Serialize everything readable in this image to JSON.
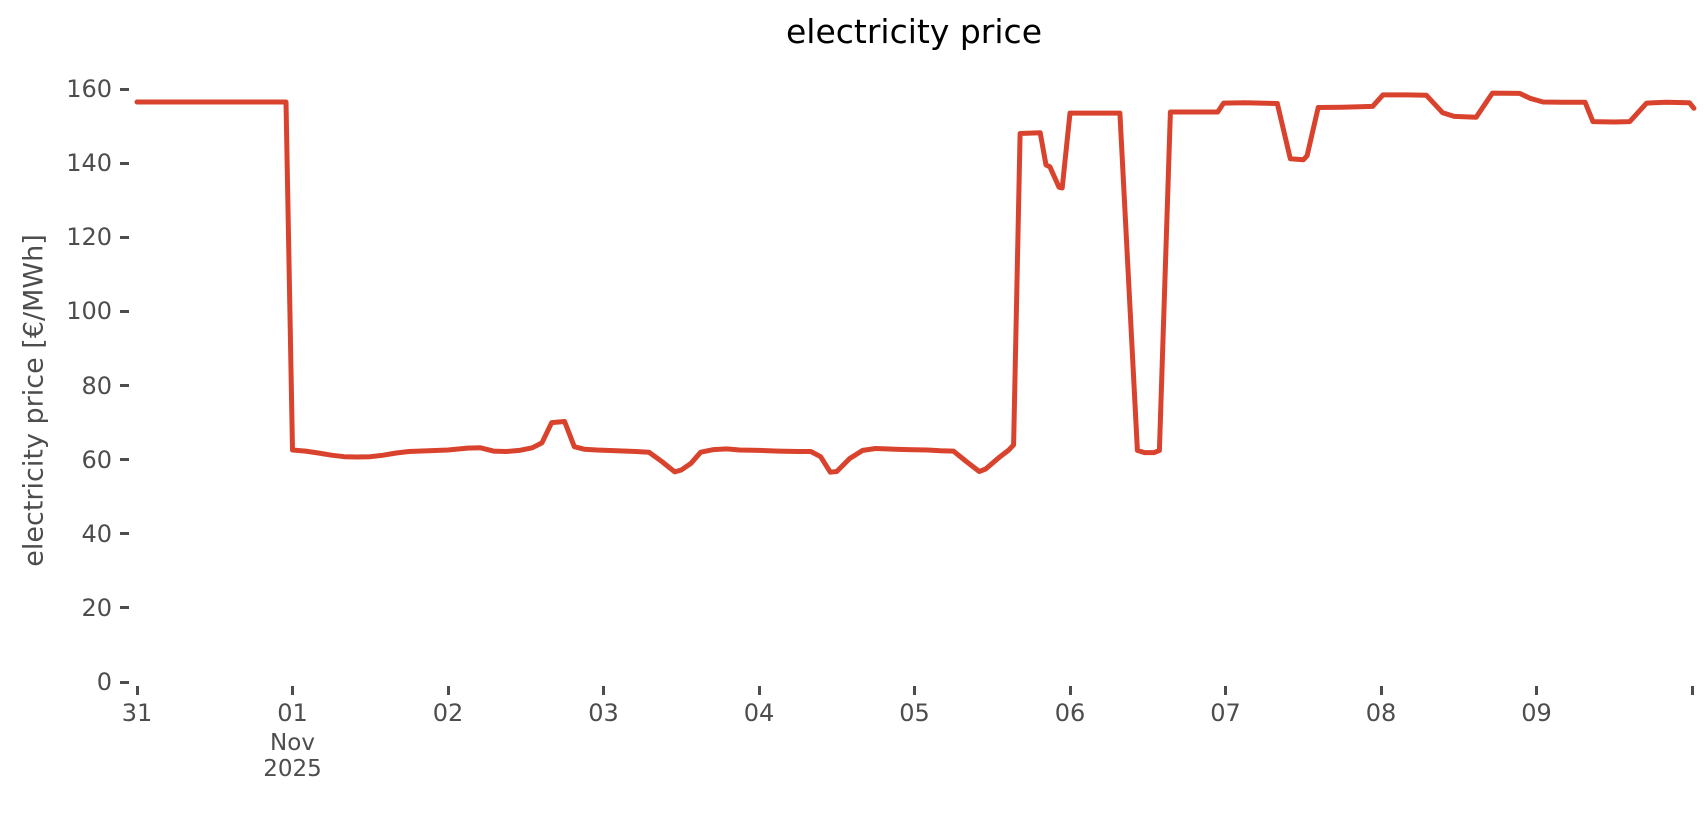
{
  "chart_data": {
    "type": "line",
    "title": "electricity price",
    "xlabel": "",
    "ylabel": "electricity price [€/MWh]",
    "x_unit": "hours since 2025-10-31 00:00",
    "xlim": [
      0,
      241
    ],
    "ylim": [
      0,
      164
    ],
    "grid": false,
    "legend": "none",
    "colors": {
      "line": "#d9432e",
      "tick_text": "#4d4d4d",
      "title_text": "#000000",
      "background": "#ffffff"
    },
    "y_ticks": [
      0,
      20,
      40,
      60,
      80,
      100,
      120,
      140,
      160
    ],
    "x_ticks": [
      {
        "hour": 0,
        "label": "31"
      },
      {
        "hour": 24,
        "label": "01",
        "sub1": "Nov",
        "sub2": "2025"
      },
      {
        "hour": 48,
        "label": "02"
      },
      {
        "hour": 72,
        "label": "03"
      },
      {
        "hour": 96,
        "label": "04"
      },
      {
        "hour": 120,
        "label": "05"
      },
      {
        "hour": 144,
        "label": "06"
      },
      {
        "hour": 168,
        "label": "07"
      },
      {
        "hour": 192,
        "label": "08"
      },
      {
        "hour": 216,
        "label": "09"
      },
      {
        "hour": 240,
        "label": ""
      }
    ],
    "series": [
      {
        "name": "electricity price",
        "points": [
          [
            0,
            156.5
          ],
          [
            4,
            156.5
          ],
          [
            8,
            156.5
          ],
          [
            12,
            156.5
          ],
          [
            16,
            156.5
          ],
          [
            20,
            156.5
          ],
          [
            23,
            156.5
          ],
          [
            24,
            62.6
          ],
          [
            26,
            62.3
          ],
          [
            28,
            61.8
          ],
          [
            30,
            61.2
          ],
          [
            32,
            60.8
          ],
          [
            34,
            60.7
          ],
          [
            36,
            60.8
          ],
          [
            38,
            61.2
          ],
          [
            40,
            61.8
          ],
          [
            42,
            62.2
          ],
          [
            45,
            62.4
          ],
          [
            48,
            62.6
          ],
          [
            51,
            63.1
          ],
          [
            53,
            63.2
          ],
          [
            55,
            62.3
          ],
          [
            57,
            62.2
          ],
          [
            59,
            62.5
          ],
          [
            61,
            63.2
          ],
          [
            62.5,
            64.5
          ],
          [
            64,
            70
          ],
          [
            66,
            70.3
          ],
          [
            67.5,
            63.5
          ],
          [
            69,
            62.8
          ],
          [
            71,
            62.6
          ],
          [
            74,
            62.4
          ],
          [
            77,
            62.2
          ],
          [
            79,
            62
          ],
          [
            81,
            59.5
          ],
          [
            83,
            56.7
          ],
          [
            84,
            57.2
          ],
          [
            85.5,
            59
          ],
          [
            87,
            62
          ],
          [
            89,
            62.7
          ],
          [
            91,
            62.9
          ],
          [
            93,
            62.6
          ],
          [
            96,
            62.5
          ],
          [
            99,
            62.3
          ],
          [
            102,
            62.2
          ],
          [
            104,
            62.2
          ],
          [
            105.5,
            60.8
          ],
          [
            107,
            56.6
          ],
          [
            108,
            56.8
          ],
          [
            110,
            60.3
          ],
          [
            112,
            62.5
          ],
          [
            114,
            63
          ],
          [
            117,
            62.8
          ],
          [
            119,
            62.7
          ],
          [
            122,
            62.6
          ],
          [
            124,
            62.4
          ],
          [
            126,
            62.3
          ],
          [
            128,
            59.5
          ],
          [
            130,
            56.8
          ],
          [
            131,
            57.5
          ],
          [
            133,
            60.5
          ],
          [
            134.5,
            62.5
          ],
          [
            135.3,
            64
          ],
          [
            136.3,
            148
          ],
          [
            139.4,
            148.2
          ],
          [
            140.3,
            139.5
          ],
          [
            140.9,
            139
          ],
          [
            142.3,
            133.5
          ],
          [
            142.8,
            133.3
          ],
          [
            144,
            153.5
          ],
          [
            148,
            153.5
          ],
          [
            151.7,
            153.5
          ],
          [
            154.4,
            62.5
          ],
          [
            155.5,
            61.9
          ],
          [
            157,
            61.9
          ],
          [
            157.8,
            62.5
          ],
          [
            159.5,
            153.8
          ],
          [
            163,
            153.8
          ],
          [
            166.8,
            153.8
          ],
          [
            167.7,
            156.2
          ],
          [
            171,
            156.3
          ],
          [
            176,
            156.1
          ],
          [
            178,
            141.2
          ],
          [
            180,
            140.9
          ],
          [
            180.6,
            142
          ],
          [
            182.3,
            155
          ],
          [
            186,
            155.1
          ],
          [
            190.7,
            155.3
          ],
          [
            192.3,
            158.4
          ],
          [
            196,
            158.4
          ],
          [
            199,
            158.3
          ],
          [
            201.5,
            153.6
          ],
          [
            203.3,
            152.6
          ],
          [
            206.7,
            152.4
          ],
          [
            209.2,
            158.9
          ],
          [
            213.4,
            158.8
          ],
          [
            215,
            157.5
          ],
          [
            217,
            156.5
          ],
          [
            220,
            156.4
          ],
          [
            223.5,
            156.4
          ],
          [
            224.7,
            151.2
          ],
          [
            228,
            151.1
          ],
          [
            230.4,
            151.2
          ],
          [
            233,
            156.2
          ],
          [
            236,
            156.4
          ],
          [
            239.6,
            156.3
          ],
          [
            240.3,
            154.8
          ]
        ]
      }
    ]
  }
}
